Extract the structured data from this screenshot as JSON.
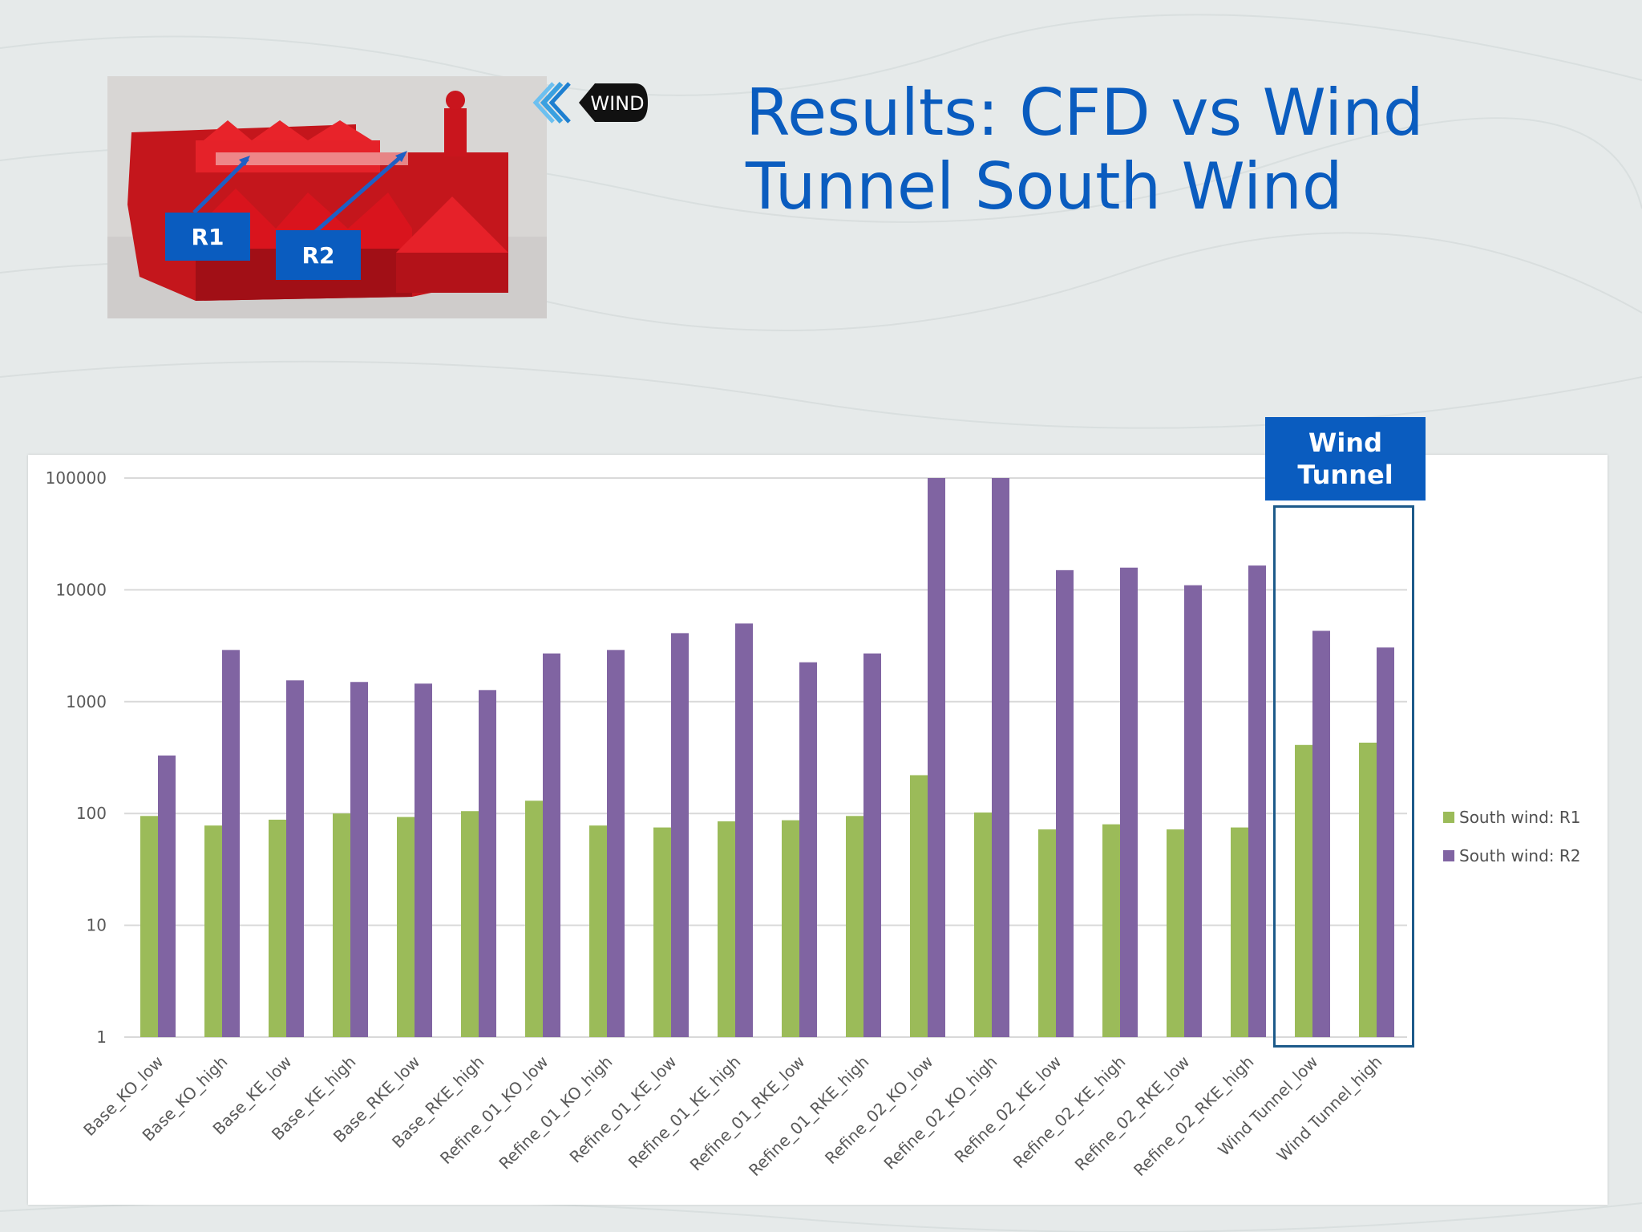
{
  "title": "Results: CFD vs Wind Tunnel South Wind",
  "photo": {
    "label_r1": "R1",
    "label_r2": "R2",
    "wind_label": "WIND"
  },
  "wind_tunnel_label_line1": "Wind",
  "wind_tunnel_label_line2": "Tunnel",
  "colors": {
    "accent_blue": "#0a5cbf",
    "series_r1": "#9bbb59",
    "series_r2": "#8064a2",
    "model_red": "#e01e24"
  },
  "chart_data": {
    "type": "bar",
    "yscale": "log",
    "ylim": [
      1,
      100000
    ],
    "yticks": [
      "100000",
      "10000",
      "1000",
      "100",
      "10",
      "1"
    ],
    "grid": true,
    "legend_position": "right",
    "categories": [
      "Base_KO_low",
      "Base_KO_high",
      "Base_KE_low",
      "Base_KE_high",
      "Base_RKE_low",
      "Base_RKE_high",
      "Refine_01_KO_low",
      "Refine_01_KO_high",
      "Refine_01_KE_low",
      "Refine_01_KE_high",
      "Refine_01_RKE_low",
      "Refine_01_RKE_high",
      "Refine_02_KO_low",
      "Refine_02_KO_high",
      "Refine_02_KE_low",
      "Refine_02_KE_high",
      "Refine_02_RKE_low",
      "Refine_02_RKE_high",
      "Wind Tunnel_low",
      "Wind Tunnel_high"
    ],
    "series": [
      {
        "name": "South wind: R1",
        "values": [
          95,
          78,
          88,
          100,
          93,
          105,
          130,
          78,
          75,
          85,
          87,
          95,
          220,
          102,
          72,
          80,
          72,
          75,
          410,
          430
        ]
      },
      {
        "name": "South wind: R2",
        "values": [
          330,
          2900,
          1550,
          1500,
          1450,
          1270,
          2700,
          2900,
          4100,
          5000,
          2250,
          2700,
          100000,
          100000,
          15000,
          15800,
          11000,
          16500,
          4300,
          3050
        ]
      }
    ]
  }
}
